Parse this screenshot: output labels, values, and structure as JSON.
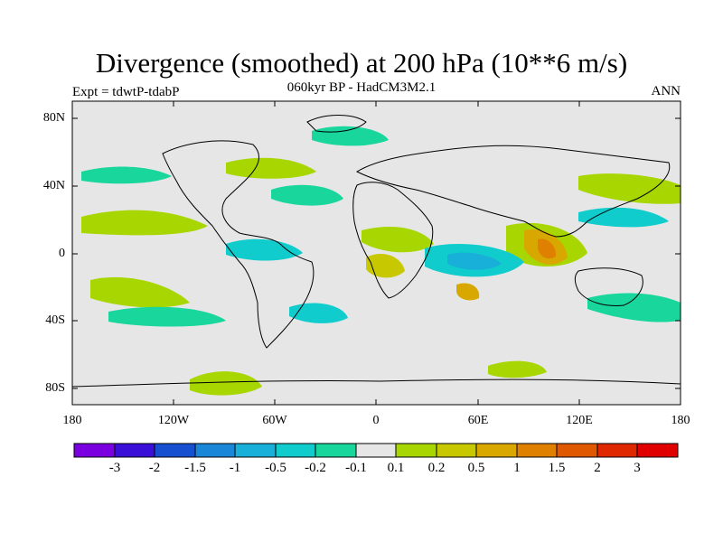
{
  "title": "Divergence (smoothed) at 200 hPa (10**6 m/s)",
  "subtitle": "060kyr BP - HadCM3M2.1",
  "experiment": "Expt = tdwtP-tdabP",
  "season": "ANN",
  "axes": {
    "lat_labels": [
      "80N",
      "40N",
      "0",
      "40S",
      "80S"
    ],
    "lon_labels": [
      "180",
      "120W",
      "60W",
      "0",
      "60E",
      "120E",
      "180"
    ]
  },
  "colors": {
    "land_bg": "#e6e6e6",
    "levels": [
      "#7a00e0",
      "#3a10d8",
      "#1650d0",
      "#1a86d8",
      "#18b0d8",
      "#10cccc",
      "#18d69c",
      "#e6e6e6",
      "#a8d600",
      "#c8c800",
      "#d8a800",
      "#e08000",
      "#e05800",
      "#e02800",
      "#e00000"
    ]
  },
  "colorbar": {
    "labels": [
      "-3",
      "-2",
      "-1.5",
      "-1",
      "-0.5",
      "-0.2",
      "-0.1",
      "0.1",
      "0.2",
      "0.5",
      "1",
      "1.5",
      "2",
      "3"
    ]
  }
}
